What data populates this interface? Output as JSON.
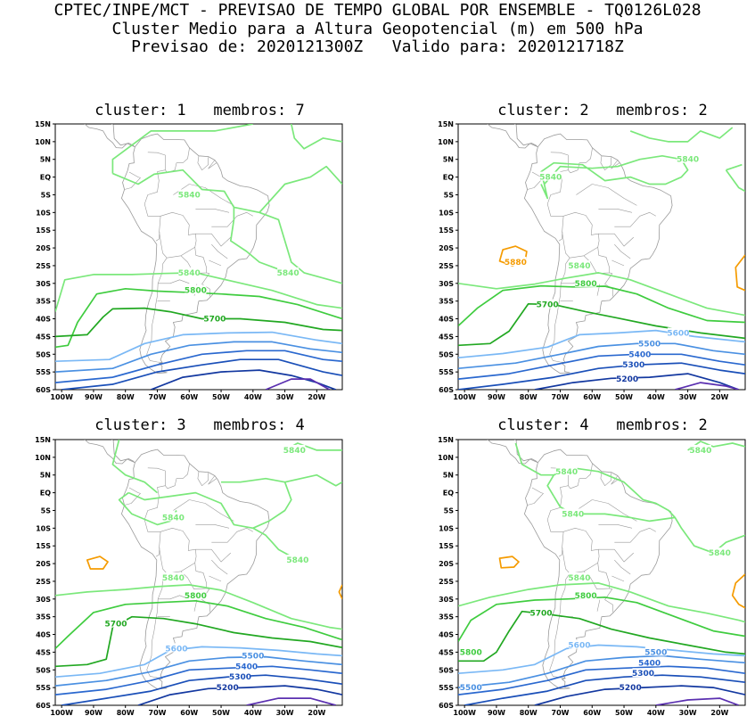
{
  "header": {
    "line1": "CPTEC/INPE/MCT - PREVISAO DE TEMPO GLOBAL POR ENSEMBLE - TQ0126L028",
    "line2": "Cluster Medio para a Altura Geopotencial (m) em 500 hPa",
    "line3": "Previsao de: 2020121300Z   Valido para: 2020121718Z"
  },
  "axes": {
    "lat_labels": [
      "15N",
      "10N",
      "5N",
      "EQ",
      "5S",
      "10S",
      "15S",
      "20S",
      "25S",
      "30S",
      "35S",
      "40S",
      "45S",
      "50S",
      "55S",
      "60S"
    ],
    "lon_labels": [
      "100W",
      "90W",
      "80W",
      "70W",
      "60W",
      "50W",
      "40W",
      "30W",
      "20W"
    ]
  },
  "colors": {
    "c5880": "#f59b00",
    "c5840": "#7be87b",
    "c5800": "#3fcc3f",
    "c5700": "#22a822",
    "c5600": "#7ab8f5",
    "c5500": "#4a90e2",
    "c5400": "#2a68cf",
    "c5300": "#1a4fb8",
    "c5200": "#1338a0",
    "c5100": "#5a2fb0",
    "coast": "#9a9a9a"
  },
  "panels": [
    {
      "title": "cluster: 1   membros: 7",
      "labels": [
        {
          "text": "5840",
          "lon": -60,
          "lat": -5
        },
        {
          "text": "5840",
          "lon": -29,
          "lat": -27
        },
        {
          "text": "5840",
          "lon": -60,
          "lat": -27
        },
        {
          "text": "5800",
          "lon": -58,
          "lat": -32
        },
        {
          "text": "5700",
          "lon": -52,
          "lat": -40
        }
      ]
    },
    {
      "title": "cluster: 2   membros: 2",
      "labels": [
        {
          "text": "5840",
          "lon": -30,
          "lat": 5
        },
        {
          "text": "5840",
          "lon": -73,
          "lat": 0
        },
        {
          "text": "5880",
          "lon": -84,
          "lat": -24
        },
        {
          "text": "5840",
          "lon": -64,
          "lat": -25
        },
        {
          "text": "5800",
          "lon": -62,
          "lat": -30
        },
        {
          "text": "5700",
          "lon": -74,
          "lat": -36
        },
        {
          "text": "5600",
          "lon": -33,
          "lat": -44
        },
        {
          "text": "5500",
          "lon": -42,
          "lat": -47
        },
        {
          "text": "5400",
          "lon": -45,
          "lat": -50
        },
        {
          "text": "5300",
          "lon": -47,
          "lat": -53
        },
        {
          "text": "5200",
          "lon": -49,
          "lat": -57
        }
      ]
    },
    {
      "title": "cluster: 3   membros: 4",
      "labels": [
        {
          "text": "5840",
          "lon": -27,
          "lat": 12
        },
        {
          "text": "5840",
          "lon": -65,
          "lat": -7
        },
        {
          "text": "5840",
          "lon": -26,
          "lat": -19
        },
        {
          "text": "5840",
          "lon": -65,
          "lat": -24
        },
        {
          "text": "5800",
          "lon": -58,
          "lat": -29
        },
        {
          "text": "5700",
          "lon": -83,
          "lat": -37
        },
        {
          "text": "5600",
          "lon": -64,
          "lat": -44
        },
        {
          "text": "5500",
          "lon": -40,
          "lat": -46
        },
        {
          "text": "5400",
          "lon": -42,
          "lat": -49
        },
        {
          "text": "5300",
          "lon": -44,
          "lat": -52
        },
        {
          "text": "5200",
          "lon": -48,
          "lat": -55
        }
      ]
    },
    {
      "title": "cluster: 4   membros: 2",
      "labels": [
        {
          "text": "5840",
          "lon": -26,
          "lat": 12
        },
        {
          "text": "5840",
          "lon": -68,
          "lat": 6
        },
        {
          "text": "5840",
          "lon": -66,
          "lat": -6
        },
        {
          "text": "5840",
          "lon": -20,
          "lat": -17
        },
        {
          "text": "5840",
          "lon": -64,
          "lat": -24
        },
        {
          "text": "5800",
          "lon": -62,
          "lat": -29
        },
        {
          "text": "5700",
          "lon": -76,
          "lat": -34
        },
        {
          "text": "5600",
          "lon": -64,
          "lat": -43
        },
        {
          "text": "5500",
          "lon": -40,
          "lat": -45
        },
        {
          "text": "5400",
          "lon": -42,
          "lat": -48
        },
        {
          "text": "5300",
          "lon": -44,
          "lat": -51
        },
        {
          "text": "5200",
          "lon": -48,
          "lat": -55
        },
        {
          "text": "5800",
          "lon": -98,
          "lat": -45
        },
        {
          "text": "5500",
          "lon": -98,
          "lat": -55
        }
      ]
    }
  ]
}
